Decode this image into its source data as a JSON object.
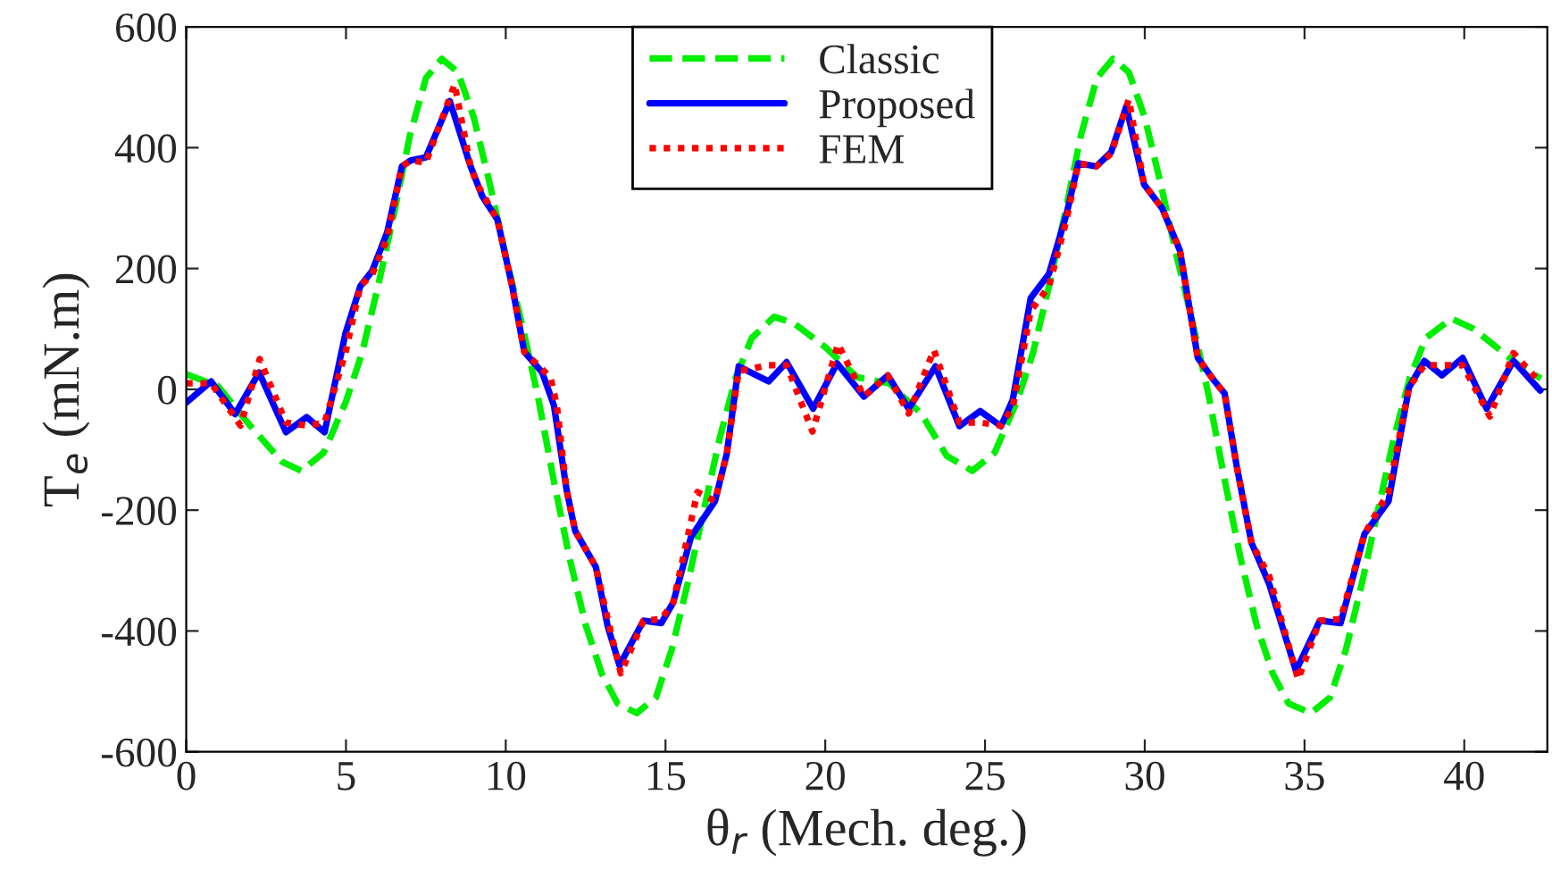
{
  "chart_data": {
    "type": "line",
    "xlabel": "θ$_{r}$ (Mech. deg.)",
    "ylabel": "T$_{e}$ (mN.m)",
    "xlim": [
      0,
      42.6
    ],
    "ylim": [
      -600,
      600
    ],
    "xticks": [
      0,
      5,
      10,
      15,
      20,
      25,
      30,
      35,
      40
    ],
    "yticks": [
      -600,
      -400,
      -200,
      0,
      200,
      400,
      600
    ],
    "grid": false,
    "legend": "top",
    "marker": "none",
    "series": [
      {
        "name": "Classic",
        "color": "#00ee00",
        "line_style": "dashed",
        "x": [
          0,
          1,
          2,
          3,
          3.6,
          4.3,
          5,
          5.5,
          6,
          6.5,
          7,
          7.5,
          8,
          8.5,
          9,
          9.5,
          10,
          10.5,
          11,
          11.5,
          12,
          12.5,
          13,
          13.5,
          14.1,
          14.7,
          15.2,
          15.7,
          16.2,
          16.7,
          17.2,
          17.7,
          18.4,
          19,
          20,
          21,
          22,
          23,
          23.8,
          24.6,
          25.3,
          26,
          26.5,
          27,
          27.5,
          28,
          28.5,
          29,
          29.5,
          30,
          30.5,
          31,
          31.5,
          32,
          32.5,
          33,
          33.5,
          34,
          34.5,
          35.2,
          35.8,
          36.3,
          36.8,
          37.3,
          37.8,
          38.3,
          38.8,
          39.6,
          40.3,
          41,
          41.7,
          42.4
        ],
        "values": [
          25,
          5,
          -60,
          -120,
          -135,
          -105,
          -20,
          60,
          170,
          290,
          420,
          515,
          547,
          525,
          450,
          340,
          220,
          110,
          -10,
          -150,
          -280,
          -390,
          -470,
          -520,
          -536,
          -510,
          -430,
          -320,
          -200,
          -80,
          20,
          85,
          120,
          110,
          70,
          20,
          10,
          -40,
          -110,
          -135,
          -105,
          -20,
          60,
          170,
          290,
          420,
          515,
          547,
          525,
          450,
          340,
          220,
          110,
          -10,
          -150,
          -280,
          -390,
          -470,
          -520,
          -536,
          -510,
          -430,
          -320,
          -200,
          -80,
          20,
          85,
          117,
          100,
          70,
          40,
          18
        ]
      },
      {
        "name": "Proposed",
        "color": "#0000ff",
        "line_style": "solid",
        "x": [
          0,
          0.78,
          1.53,
          2.28,
          3.12,
          3.77,
          4.33,
          4.98,
          5.45,
          5.82,
          6.29,
          6.75,
          7.03,
          7.5,
          8.25,
          8.9,
          9.27,
          9.74,
          10.2,
          10.58,
          11.14,
          11.51,
          11.9,
          12.17,
          12.82,
          13.19,
          13.56,
          14.31,
          14.87,
          15.24,
          15.8,
          16.55,
          16.92,
          17.29,
          18.23,
          18.79,
          19.62,
          20.37,
          21.21,
          21.96,
          22.61,
          23.45,
          24.2,
          24.85,
          25.5,
          25.87,
          26.43,
          27.0,
          27.55,
          27.92,
          28.48,
          28.95,
          29.42,
          29.98,
          30.54,
          31.1,
          31.66,
          32.12,
          32.5,
          32.87,
          33.34,
          33.9,
          34.73,
          35.48,
          36.13,
          36.88,
          37.63,
          38.27,
          38.75,
          39.3,
          39.95,
          40.7,
          41.54,
          42.38
        ],
        "values": [
          -22,
          13,
          -41,
          28,
          -71,
          -46,
          -71,
          92,
          171,
          196,
          260,
          369,
          379,
          384,
          477,
          369,
          319,
          281,
          171,
          62,
          28,
          -27,
          -165,
          -234,
          -294,
          -392,
          -457,
          -383,
          -387,
          -353,
          -244,
          -185,
          -106,
          38,
          13,
          45,
          -32,
          43,
          -12,
          23,
          -32,
          38,
          -61,
          -36,
          -61,
          -17,
          151,
          191,
          290,
          374,
          369,
          393,
          468,
          339,
          300,
          230,
          52,
          18,
          -7,
          -125,
          -254,
          -323,
          -466,
          -383,
          -387,
          -239,
          -185,
          3,
          47,
          23,
          52,
          -32,
          47,
          -2
        ]
      },
      {
        "name": "FEM",
        "color": "#ff0000",
        "line_style": "dotted",
        "x": [
          0,
          0.78,
          1.7,
          2.3,
          3.12,
          3.77,
          4.33,
          4.98,
          5.45,
          5.82,
          6.29,
          6.75,
          7.03,
          7.5,
          8.4,
          8.9,
          9.1,
          9.74,
          10.2,
          10.58,
          11.4,
          11.6,
          11.9,
          12.17,
          12.82,
          13.19,
          13.6,
          14.31,
          14.87,
          15.24,
          16.0,
          16.55,
          16.92,
          17.29,
          18.23,
          18.79,
          19.6,
          20.4,
          21.21,
          21.96,
          22.61,
          23.4,
          24.2,
          24.85,
          25.5,
          25.87,
          26.43,
          27.0,
          27.55,
          27.92,
          28.48,
          28.95,
          29.5,
          29.98,
          30.54,
          31.1,
          31.66,
          32.12,
          32.5,
          32.87,
          33.34,
          33.9,
          34.8,
          35.48,
          36.13,
          36.88,
          37.63,
          38.27,
          38.75,
          39.3,
          39.95,
          40.8,
          41.54,
          42.4
        ],
        "values": [
          10,
          10,
          -60,
          50,
          -55,
          -60,
          -55,
          60,
          171,
          190,
          250,
          369,
          379,
          375,
          505,
          369,
          340,
          281,
          171,
          62,
          20,
          -27,
          -165,
          -234,
          -294,
          -380,
          -470,
          -383,
          -380,
          -353,
          -170,
          -185,
          -106,
          30,
          40,
          40,
          -70,
          75,
          -12,
          23,
          -40,
          65,
          -55,
          -55,
          -60,
          -30,
          130,
          170,
          280,
          374,
          369,
          390,
          480,
          339,
          300,
          230,
          52,
          18,
          -7,
          -125,
          -254,
          -310,
          -480,
          -383,
          -380,
          -239,
          -170,
          3,
          40,
          40,
          40,
          -45,
          60,
          10
        ]
      }
    ]
  }
}
